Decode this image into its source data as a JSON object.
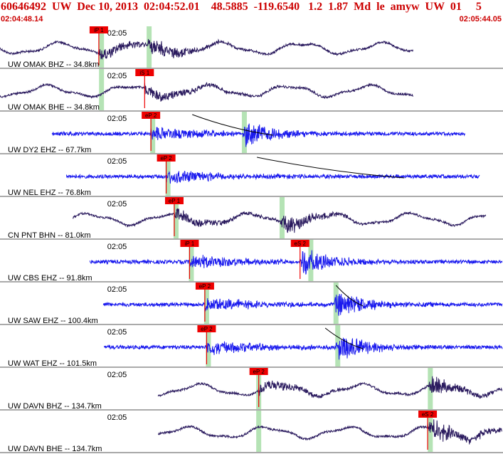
{
  "header": {
    "title": "60646492  UW  Dec 10, 2013  02:04:52.01    48.5885  -119.6540   1.2  1.87  Md  le  amyw  UW  01     5",
    "start_time": "02:04:48.14",
    "end_time": "02:05:44.05"
  },
  "colors": {
    "header_text": "#cc0000",
    "broadband_trace": "#2a1a5e",
    "shortperiod_trace": "#1a1aee",
    "pick_fill": "#ee0000",
    "pick_window": "#b5e3b5",
    "moveout_curve": "#000000",
    "separator": "#555555"
  },
  "chart_data": {
    "type": "seismogram",
    "x_range_s": [
      0,
      55.91
    ],
    "minute_marker_label": "02:05",
    "traces": [
      {
        "label": "UW OMAK BHZ -- 34.8km",
        "instrument": "broadband",
        "start": 0.0,
        "end": 46.0,
        "picks": [
          {
            "label": "iP 1",
            "time": 11.0
          }
        ],
        "windows": [
          11.1,
          16.4
        ],
        "moveout": null
      },
      {
        "label": "UW OMAK BHE -- 34.8km",
        "instrument": "broadband",
        "start": 0.0,
        "end": 46.0,
        "picks": [
          {
            "label": "iS 1",
            "time": 16.1
          }
        ],
        "windows": [
          11.1
        ],
        "moveout": null
      },
      {
        "label": "UW DY2 EHZ -- 67.7km",
        "instrument": "shortperiod",
        "start": 5.8,
        "end": 51.8,
        "picks": [
          {
            "label": "eP 2",
            "time": 16.8
          }
        ],
        "windows": [
          16.8,
          27.0
        ],
        "moveout": [
          21.4,
          30.4
        ]
      },
      {
        "label": "UW NEL EHZ -- 76.8km",
        "instrument": "shortperiod",
        "start": 7.4,
        "end": 53.4,
        "picks": [
          {
            "label": "eP 2",
            "time": 18.5
          }
        ],
        "windows": [
          18.5
        ],
        "moveout": [
          28.6,
          45.0
        ]
      },
      {
        "label": "CN PNT BHN -- 81.0km",
        "instrument": "broadband",
        "start": 8.1,
        "end": 54.1,
        "picks": [
          {
            "label": "eP 1",
            "time": 19.4
          }
        ],
        "windows": [
          19.4,
          31.2
        ],
        "moveout": null
      },
      {
        "label": "UW CBS EHZ -- 91.8km",
        "instrument": "shortperiod",
        "start": 10.0,
        "end": 56.0,
        "picks": [
          {
            "label": "iP 1",
            "time": 21.1
          },
          {
            "label": "eS 2",
            "time": 33.4
          }
        ],
        "windows": [
          21.1,
          34.4
        ],
        "moveout": null
      },
      {
        "label": "UW SAW EHZ -- 100.4km",
        "instrument": "shortperiod",
        "start": 11.5,
        "end": 57.5,
        "picks": [
          {
            "label": "eP 2",
            "time": 22.8
          }
        ],
        "windows": [
          22.8,
          37.2
        ],
        "moveout": [
          37.4,
          40.4
        ]
      },
      {
        "label": "UW WAT EHZ -- 101.5km",
        "instrument": "shortperiod",
        "start": 11.6,
        "end": 57.6,
        "picks": [
          {
            "label": "eP 2",
            "time": 23.0
          }
        ],
        "windows": [
          23.0,
          37.4
        ],
        "moveout": [
          36.2,
          40.4
        ]
      },
      {
        "label": "UW DAVN BHZ -- 134.7km",
        "instrument": "broadband",
        "start": 17.6,
        "end": 63.6,
        "picks": [
          {
            "label": "eP 2",
            "time": 28.8
          }
        ],
        "windows": [
          28.6,
          47.7
        ],
        "moveout": null
      },
      {
        "label": "UW DAVN BHE -- 134.7km",
        "instrument": "broadband",
        "start": 17.6,
        "end": 63.6,
        "picks": [
          {
            "label": "eS 2",
            "time": 47.6
          }
        ],
        "windows": [
          28.6,
          47.7
        ],
        "moveout": null
      }
    ]
  }
}
